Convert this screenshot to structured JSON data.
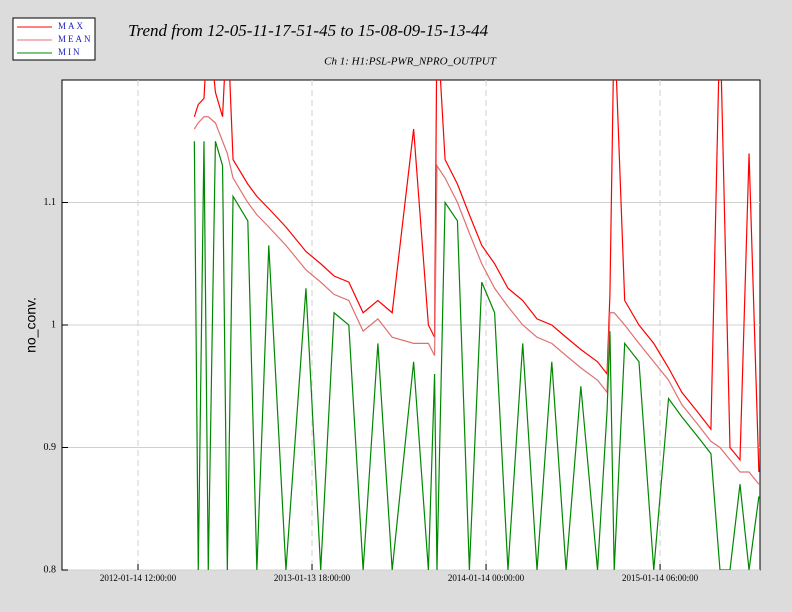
{
  "chart_data": {
    "type": "line",
    "title": "Trend from 12-05-11-17-51-45 to 15-08-09-15-13-44",
    "subtitle": "Ch 1: H1:PSL-PWR_NPRO_OUTPUT",
    "y_label": "no_conv.",
    "x": [
      "2012-05-11 17:51:45",
      "2012-05-20",
      "2012-06-01",
      "2012-06-10",
      "2012-06-25",
      "2012-07-10",
      "2012-07-20",
      "2012-08-01",
      "2012-09-01",
      "2012-09-20",
      "2012-10-15",
      "2012-11-20",
      "2013-01-01",
      "2013-02-01",
      "2013-03-01",
      "2013-04-01",
      "2013-05-01",
      "2013-06-01",
      "2013-07-01",
      "2013-08-15",
      "2013-09-15",
      "2013-09-28",
      "2013-10-03",
      "2013-10-20",
      "2013-11-15",
      "2013-12-10",
      "2014-01-05",
      "2014-02-01",
      "2014-03-01",
      "2014-04-01",
      "2014-05-01",
      "2014-06-01",
      "2014-07-01",
      "2014-08-01",
      "2014-09-05",
      "2014-09-25",
      "2014-10-01",
      "2014-10-10",
      "2014-11-01",
      "2014-12-01",
      "2015-01-01",
      "2015-02-01",
      "2015-03-01",
      "2015-04-01",
      "2015-05-01",
      "2015-05-20",
      "2015-06-10",
      "2015-07-01",
      "2015-07-20",
      "2015-08-09 15:13:44"
    ],
    "series": [
      {
        "name": "MAX",
        "color": "#ff0000",
        "values": [
          1.17,
          1.18,
          1.185,
          1.25,
          1.19,
          1.17,
          1.25,
          1.135,
          1.115,
          1.105,
          1.095,
          1.08,
          1.06,
          1.05,
          1.04,
          1.035,
          1.01,
          1.02,
          1.01,
          1.16,
          1.0,
          0.99,
          1.25,
          1.135,
          1.115,
          1.09,
          1.065,
          1.05,
          1.03,
          1.02,
          1.005,
          1.0,
          0.99,
          0.98,
          0.97,
          0.96,
          1.025,
          1.25,
          1.02,
          1.0,
          0.985,
          0.965,
          0.945,
          0.93,
          0.915,
          1.25,
          0.9,
          0.89,
          1.14,
          0.88
        ]
      },
      {
        "name": "MEAN",
        "color": "#e07070",
        "values": [
          1.16,
          1.165,
          1.17,
          1.17,
          1.165,
          1.15,
          1.14,
          1.12,
          1.1,
          1.09,
          1.08,
          1.065,
          1.045,
          1.035,
          1.025,
          1.02,
          0.995,
          1.005,
          0.99,
          0.985,
          0.985,
          0.975,
          1.13,
          1.12,
          1.1,
          1.075,
          1.05,
          1.03,
          1.015,
          1.0,
          0.99,
          0.985,
          0.975,
          0.965,
          0.955,
          0.945,
          1.01,
          1.01,
          1.0,
          0.985,
          0.97,
          0.955,
          0.935,
          0.92,
          0.905,
          0.9,
          0.89,
          0.88,
          0.88,
          0.87
        ]
      },
      {
        "name": "MIN",
        "color": "#008800",
        "values": [
          1.15,
          0.8,
          1.15,
          0.8,
          1.15,
          1.13,
          0.8,
          1.105,
          1.085,
          0.8,
          1.065,
          0.8,
          1.03,
          0.8,
          1.01,
          1.0,
          0.8,
          0.985,
          0.8,
          0.97,
          0.8,
          0.96,
          0.8,
          1.1,
          1.085,
          0.8,
          1.035,
          1.01,
          0.8,
          0.985,
          0.8,
          0.97,
          0.8,
          0.95,
          0.8,
          0.93,
          0.995,
          0.8,
          0.985,
          0.97,
          0.8,
          0.94,
          0.925,
          0.91,
          0.895,
          0.8,
          0.8,
          0.87,
          0.8,
          0.86
        ]
      }
    ],
    "xlim": [
      "2011-08-08 00:00:00",
      "2015-08-12 00:00:00"
    ],
    "xticks": [
      "2012-01-14 12:00:00",
      "2013-01-13 18:00:00",
      "2014-01-14 00:00:00",
      "2015-01-14 06:00:00"
    ],
    "ylim": [
      0.8,
      1.2
    ],
    "yticks": [
      0.8,
      0.9,
      1,
      1.1
    ],
    "grid": true
  }
}
